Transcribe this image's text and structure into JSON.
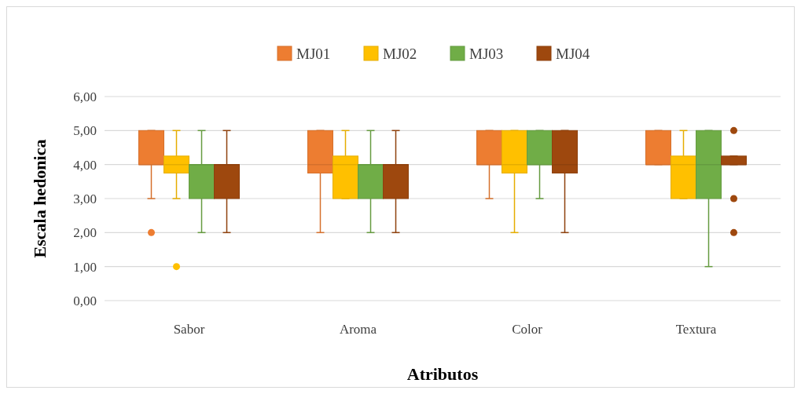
{
  "chart_data": {
    "type": "box",
    "xlabel": "Atributos",
    "ylabel": "Escala hedonica",
    "categories": [
      "Sabor",
      "Aroma",
      "Color",
      "Textura"
    ],
    "ylim": [
      0,
      6
    ],
    "yticks": [
      {
        "value": 0,
        "label": "0,00"
      },
      {
        "value": 1,
        "label": "1,00"
      },
      {
        "value": 2,
        "label": "2,00"
      },
      {
        "value": 3,
        "label": "3,00"
      },
      {
        "value": 4,
        "label": "4,00"
      },
      {
        "value": 5,
        "label": "5,00"
      },
      {
        "value": 6,
        "label": "6,00"
      }
    ],
    "grid": "y",
    "legend": "top",
    "series": [
      {
        "name": "MJ01",
        "color": "#ed7d31",
        "boxes": [
          {
            "low": 3,
            "q1": 4,
            "median": 4,
            "q3": 5,
            "high": 5,
            "outliers": [
              2
            ]
          },
          {
            "low": 2,
            "q1": 3.75,
            "median": 4,
            "q3": 5,
            "high": 5
          },
          {
            "low": 3,
            "q1": 4,
            "median": 4,
            "q3": 5,
            "high": 5
          },
          {
            "low": 4,
            "q1": 4,
            "median": 4,
            "q3": 5,
            "high": 5
          }
        ]
      },
      {
        "name": "MJ02",
        "color": "#ffc000",
        "boxes": [
          {
            "low": 3,
            "q1": 3.75,
            "median": 4,
            "q3": 4.25,
            "high": 5,
            "outliers": [
              1
            ]
          },
          {
            "low": 3,
            "q1": 3,
            "median": 4,
            "q3": 4.25,
            "high": 5
          },
          {
            "low": 2,
            "q1": 3.75,
            "median": 4,
            "q3": 5,
            "high": 5
          },
          {
            "low": 3,
            "q1": 3,
            "median": 4,
            "q3": 4.25,
            "high": 5
          }
        ]
      },
      {
        "name": "MJ03",
        "color": "#70ad47",
        "boxes": [
          {
            "low": 2,
            "q1": 3,
            "median": 4,
            "q3": 4,
            "high": 5
          },
          {
            "low": 2,
            "q1": 3,
            "median": 4,
            "q3": 4,
            "high": 5
          },
          {
            "low": 3,
            "q1": 4,
            "median": 4,
            "q3": 5,
            "high": 5
          },
          {
            "low": 1,
            "q1": 3,
            "median": 4,
            "q3": 5,
            "high": 5
          }
        ]
      },
      {
        "name": "MJ04",
        "color": "#9e480e",
        "boxes": [
          {
            "low": 2,
            "q1": 3,
            "median": 4,
            "q3": 4,
            "high": 5
          },
          {
            "low": 2,
            "q1": 3,
            "median": 4,
            "q3": 4,
            "high": 5
          },
          {
            "low": 2,
            "q1": 3.75,
            "median": 4,
            "q3": 5,
            "high": 5
          },
          {
            "low": 4,
            "q1": 4,
            "median": 4,
            "q3": 4.25,
            "high": 4.25,
            "outliers": [
              5,
              3,
              2
            ]
          }
        ]
      }
    ]
  }
}
